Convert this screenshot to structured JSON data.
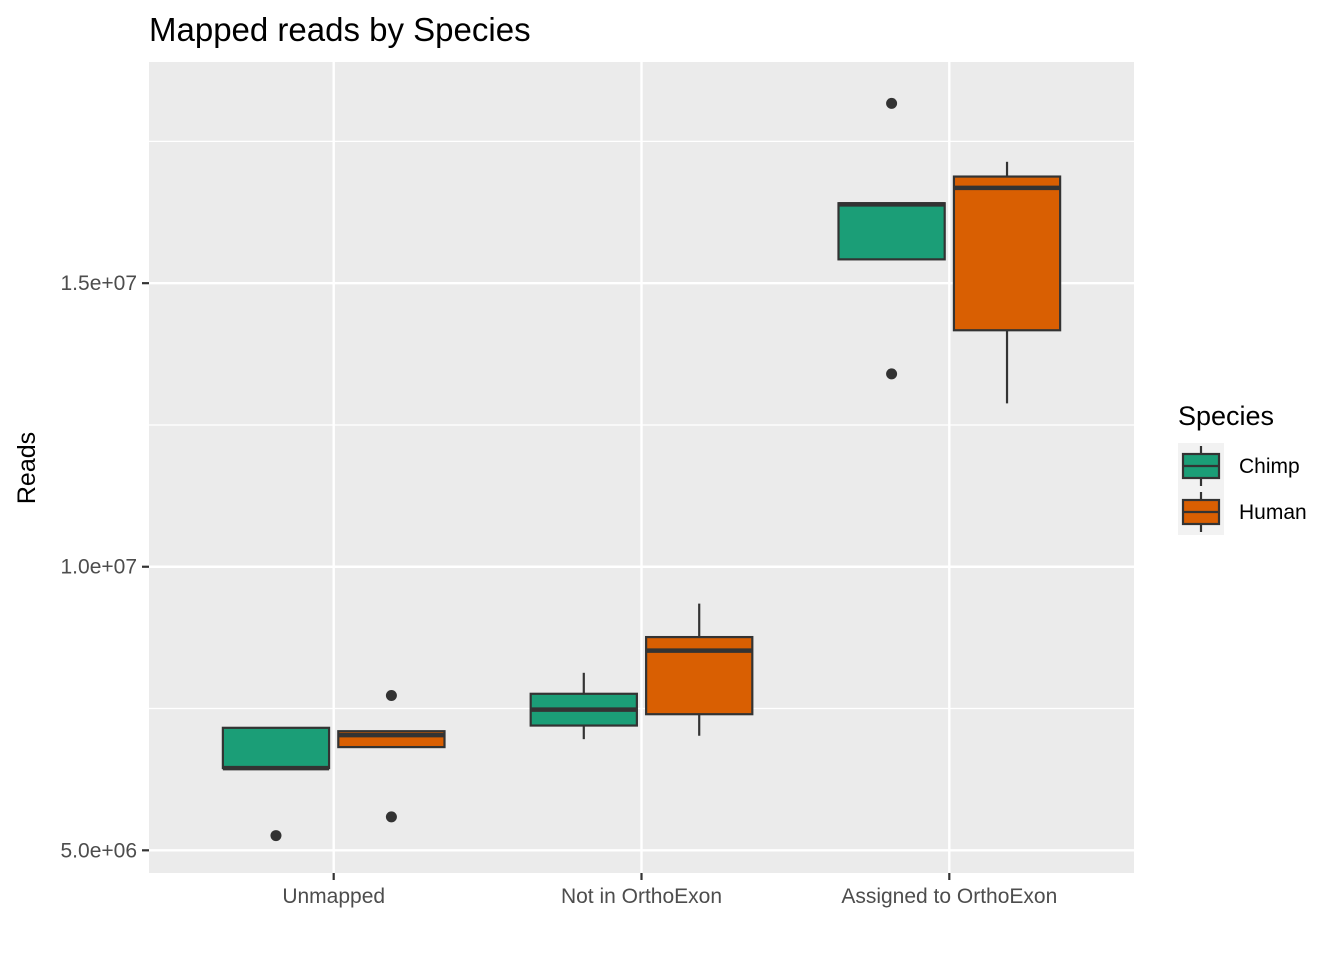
{
  "chart_data": {
    "type": "boxplot",
    "title": "Mapped reads by Species",
    "xlabel": "",
    "ylabel": "Reads",
    "ylim": [
      4600000,
      18900000
    ],
    "y_ticks": [
      5000000,
      10000000,
      15000000
    ],
    "y_tick_labels": [
      "5.0e+06",
      "1.0e+07",
      "1.5e+07"
    ],
    "y_minor_ticks": [
      7500000,
      12500000,
      17500000
    ],
    "categories": [
      "Unmapped",
      "Not in OrthoExon",
      "Assigned to OrthoExon"
    ],
    "grid": true,
    "legend": {
      "title": "Species",
      "placement": "right",
      "entries": [
        "Chimp",
        "Human"
      ]
    },
    "series": [
      {
        "name": "Chimp",
        "color": "#1b9e77",
        "boxes": [
          {
            "lower_whisker": 6450000,
            "q1": 6450000,
            "median": 6450000,
            "q3": 7160000,
            "upper_whisker": 7160000,
            "outliers": [
              5260000
            ]
          },
          {
            "lower_whisker": 6960000,
            "q1": 7200000,
            "median": 7480000,
            "q3": 7760000,
            "upper_whisker": 8130000,
            "outliers": []
          },
          {
            "lower_whisker": 15420000,
            "q1": 15420000,
            "median": 16390000,
            "q3": 16410000,
            "upper_whisker": 16410000,
            "outliers": [
              18170000,
              13400000
            ]
          }
        ]
      },
      {
        "name": "Human",
        "color": "#d95f02",
        "boxes": [
          {
            "lower_whisker": 6820000,
            "q1": 6820000,
            "median": 7030000,
            "q3": 7100000,
            "upper_whisker": 7100000,
            "outliers": [
              7730000,
              5590000
            ]
          },
          {
            "lower_whisker": 7020000,
            "q1": 7400000,
            "median": 8520000,
            "q3": 8760000,
            "upper_whisker": 9350000,
            "outliers": []
          },
          {
            "lower_whisker": 12880000,
            "q1": 14170000,
            "median": 16680000,
            "q3": 16880000,
            "upper_whisker": 17140000,
            "outliers": []
          }
        ]
      }
    ]
  }
}
